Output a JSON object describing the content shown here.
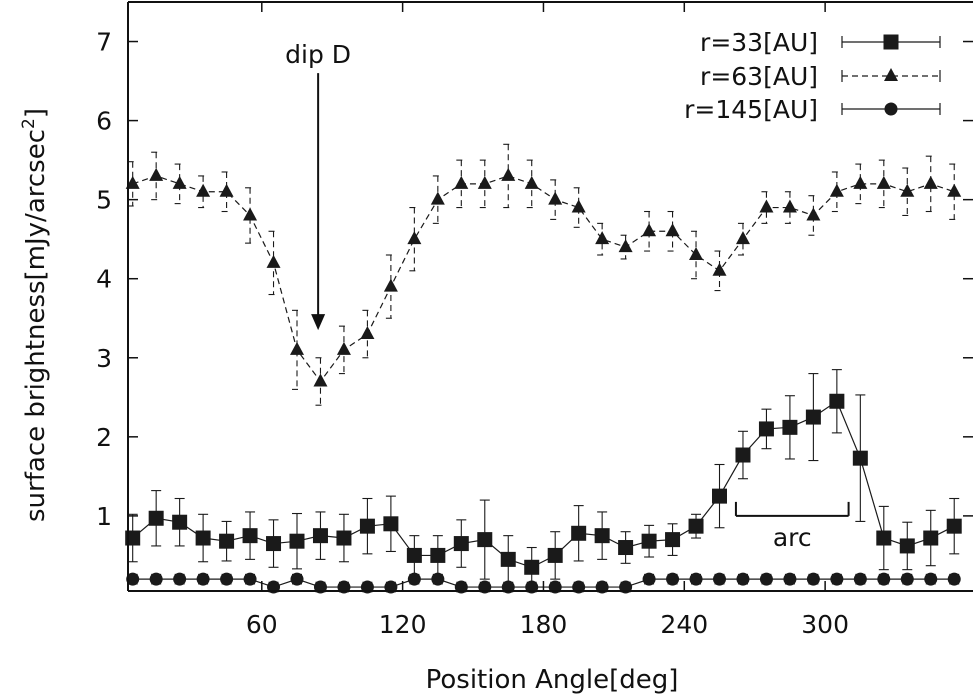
{
  "chart_data": {
    "type": "scatter",
    "xlabel": "Position Angle[deg]",
    "ylabel": "surface brightness[mJy/arcsec",
    "ylabel_sup": "2",
    "ylabel_close": "]",
    "xlim": [
      3,
      363
    ],
    "ylim": [
      0.05,
      7.5
    ],
    "xticks": [
      60,
      120,
      180,
      240,
      300
    ],
    "yticks": [
      1,
      2,
      3,
      4,
      5,
      6,
      7
    ],
    "grid": false,
    "legend_position": "top-right",
    "series": [
      {
        "name": "r=33[AU]",
        "marker": "square",
        "line": "solid",
        "x": [
          5,
          15,
          25,
          35,
          45,
          55,
          65,
          75,
          85,
          95,
          105,
          115,
          125,
          135,
          145,
          155,
          165,
          175,
          185,
          195,
          205,
          215,
          225,
          235,
          245,
          255,
          265,
          275,
          285,
          295,
          305,
          315,
          325,
          335,
          345,
          355
        ],
        "y": [
          0.72,
          0.97,
          0.92,
          0.72,
          0.68,
          0.75,
          0.65,
          0.68,
          0.75,
          0.72,
          0.87,
          0.9,
          0.5,
          0.5,
          0.65,
          0.7,
          0.45,
          0.35,
          0.5,
          0.78,
          0.75,
          0.6,
          0.68,
          0.7,
          0.87,
          1.25,
          1.77,
          2.1,
          2.12,
          2.25,
          2.45,
          1.73,
          0.72,
          0.62,
          0.72,
          0.87
        ],
        "err": [
          0.3,
          0.35,
          0.3,
          0.3,
          0.25,
          0.3,
          0.3,
          0.35,
          0.3,
          0.3,
          0.35,
          0.35,
          0.25,
          0.25,
          0.3,
          0.5,
          0.3,
          0.25,
          0.3,
          0.35,
          0.3,
          0.2,
          0.2,
          0.2,
          0.15,
          0.4,
          0.3,
          0.25,
          0.4,
          0.55,
          0.4,
          0.8,
          0.4,
          0.3,
          0.35,
          0.35
        ]
      },
      {
        "name": "r=63[AU]",
        "marker": "triangle",
        "line": "dashed",
        "x": [
          5,
          15,
          25,
          35,
          45,
          55,
          65,
          75,
          85,
          95,
          105,
          115,
          125,
          135,
          145,
          155,
          165,
          175,
          185,
          195,
          205,
          215,
          225,
          235,
          245,
          255,
          265,
          275,
          285,
          295,
          305,
          315,
          325,
          335,
          345,
          355
        ],
        "y": [
          5.2,
          5.3,
          5.2,
          5.1,
          5.1,
          4.8,
          4.2,
          3.1,
          2.7,
          3.1,
          3.3,
          3.9,
          4.5,
          5.0,
          5.2,
          5.2,
          5.3,
          5.2,
          5.0,
          4.9,
          4.5,
          4.4,
          4.6,
          4.6,
          4.3,
          4.1,
          4.5,
          4.9,
          4.9,
          4.8,
          5.1,
          5.2,
          5.2,
          5.1,
          5.2,
          5.1
        ],
        "err": [
          0.28,
          0.3,
          0.25,
          0.2,
          0.25,
          0.35,
          0.4,
          0.5,
          0.3,
          0.3,
          0.3,
          0.4,
          0.4,
          0.3,
          0.3,
          0.3,
          0.4,
          0.3,
          0.25,
          0.25,
          0.2,
          0.15,
          0.25,
          0.25,
          0.3,
          0.25,
          0.2,
          0.2,
          0.2,
          0.25,
          0.25,
          0.25,
          0.3,
          0.3,
          0.35,
          0.35
        ]
      },
      {
        "name": "r=145[AU]",
        "marker": "circle",
        "line": "solid",
        "x": [
          5,
          15,
          25,
          35,
          45,
          55,
          65,
          75,
          85,
          95,
          105,
          115,
          125,
          135,
          145,
          155,
          165,
          175,
          185,
          195,
          205,
          215,
          225,
          235,
          245,
          255,
          265,
          275,
          285,
          295,
          305,
          315,
          325,
          335,
          345,
          355
        ],
        "y": [
          0.2,
          0.2,
          0.2,
          0.2,
          0.2,
          0.2,
          0.1,
          0.2,
          0.1,
          0.1,
          0.1,
          0.1,
          0.2,
          0.2,
          0.1,
          0.1,
          0.1,
          0.1,
          0.1,
          0.1,
          0.1,
          0.1,
          0.2,
          0.2,
          0.2,
          0.2,
          0.2,
          0.2,
          0.2,
          0.2,
          0.2,
          0.2,
          0.2,
          0.2,
          0.2,
          0.2
        ],
        "err": [
          0.06,
          0.06,
          0.06,
          0.06,
          0.06,
          0.06,
          0.06,
          0.06,
          0.06,
          0.06,
          0.06,
          0.06,
          0.06,
          0.06,
          0.06,
          0.06,
          0.06,
          0.06,
          0.06,
          0.06,
          0.06,
          0.06,
          0.06,
          0.06,
          0.06,
          0.06,
          0.06,
          0.06,
          0.06,
          0.06,
          0.06,
          0.06,
          0.06,
          0.06,
          0.06,
          0.06
        ]
      }
    ],
    "annotations": [
      {
        "text": "dip D",
        "x": 84,
        "arrow_from_y": 6.6,
        "arrow_to_y": 3.35
      },
      {
        "text": "arc",
        "x_start": 262,
        "x_end": 310,
        "y": 1.0
      }
    ]
  }
}
